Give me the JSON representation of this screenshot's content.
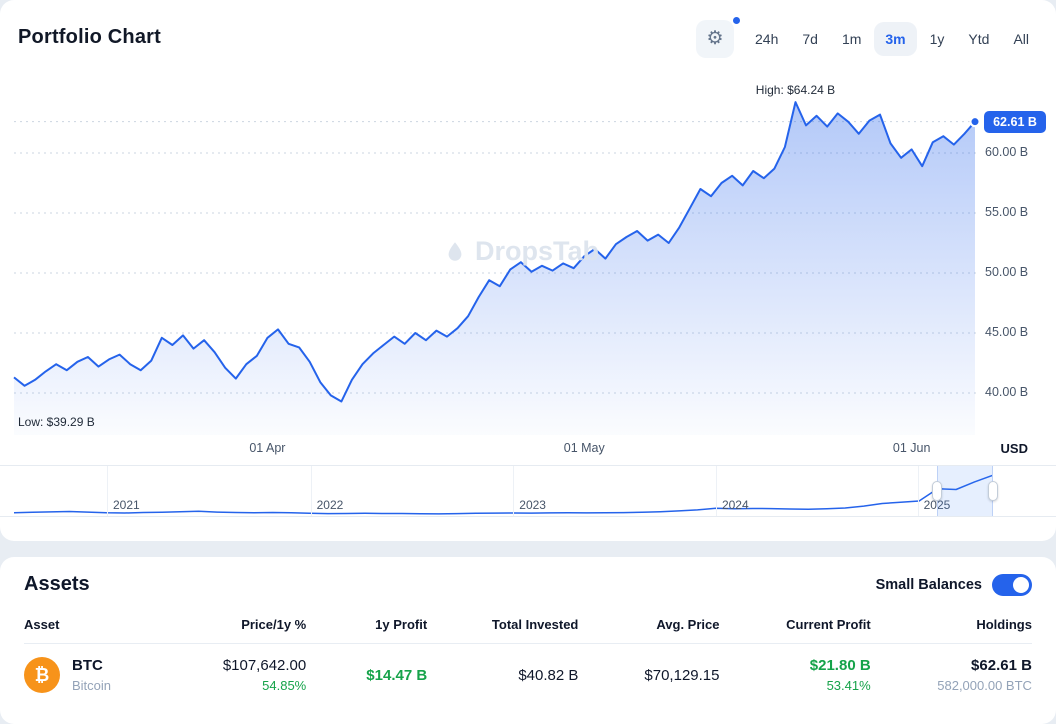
{
  "colors": {
    "accent": "#2563eb",
    "positive": "#16a34a",
    "bitcoin": "#f7931a"
  },
  "header": {
    "title": "Portfolio Chart",
    "ranges": [
      "24h",
      "7d",
      "1m",
      "3m",
      "1y",
      "Ytd",
      "All"
    ],
    "active_range": "3m"
  },
  "chart": {
    "watermark": "DropsTab",
    "high_label": "High: $64.24 B",
    "low_label": "Low: $39.29 B",
    "current_badge": "62.61 B",
    "currency": "USD",
    "y_ticks": [
      "60.00 B",
      "55.00 B",
      "50.00 B",
      "45.00 B",
      "40.00 B"
    ]
  },
  "chart_data": {
    "type": "area",
    "title": "Portfolio Chart",
    "unit": "USD billions",
    "range": "3m",
    "high": 64.24,
    "low": 39.29,
    "current": 62.61,
    "ylim": [
      37.5,
      66
    ],
    "y_gridlines": [
      60,
      55,
      50,
      45,
      40
    ],
    "x_ticks": [
      {
        "label": "01 Apr",
        "t": 0.2637
      },
      {
        "label": "01 May",
        "t": 0.5934
      },
      {
        "label": "01 Jun",
        "t": 0.9341
      }
    ],
    "values": [
      41.3,
      40.6,
      41.1,
      41.8,
      42.4,
      41.9,
      42.6,
      43.0,
      42.2,
      42.8,
      43.2,
      42.4,
      41.9,
      42.7,
      44.6,
      44.0,
      44.8,
      43.7,
      44.4,
      43.4,
      42.1,
      41.2,
      42.4,
      43.1,
      44.6,
      45.3,
      44.1,
      43.8,
      42.6,
      40.9,
      39.8,
      39.29,
      41.1,
      42.4,
      43.3,
      44.0,
      44.7,
      44.1,
      45.0,
      44.4,
      45.2,
      44.7,
      45.4,
      46.4,
      48.0,
      49.4,
      48.9,
      50.3,
      50.9,
      50.1,
      50.6,
      50.2,
      50.8,
      50.4,
      51.4,
      52.0,
      51.2,
      52.4,
      53.0,
      53.5,
      52.7,
      53.2,
      52.5,
      53.8,
      55.4,
      57.0,
      56.4,
      57.5,
      58.1,
      57.3,
      58.5,
      57.9,
      58.7,
      60.5,
      64.24,
      62.3,
      63.1,
      62.2,
      63.3,
      62.6,
      61.6,
      62.7,
      63.2,
      60.8,
      59.6,
      60.3,
      58.9,
      60.9,
      61.4,
      60.7,
      61.6,
      62.61
    ]
  },
  "navigator": {
    "years": [
      {
        "label": "2021",
        "t": 0.095
      },
      {
        "label": "2022",
        "t": 0.303
      },
      {
        "label": "2023",
        "t": 0.51
      },
      {
        "label": "2024",
        "t": 0.717
      },
      {
        "label": "2025",
        "t": 0.923
      }
    ],
    "selection": [
      0.943,
      1.0
    ],
    "values": [
      3.5,
      4.2,
      4.8,
      5.5,
      4.6,
      3.4,
      3.2,
      4.0,
      4.2,
      5.0,
      5.8,
      4.6,
      4.0,
      3.6,
      3.9,
      3.4,
      2.8,
      2.2,
      2.4,
      2.6,
      2.4,
      2.3,
      1.9,
      1.8,
      2.2,
      2.6,
      3.0,
      3.2,
      3.0,
      3.3,
      3.5,
      3.3,
      3.4,
      3.8,
      4.4,
      5.2,
      6.5,
      8.0,
      10.5,
      9.8,
      10.2,
      10.0,
      9.5,
      9.0,
      9.8,
      11.0,
      14.0,
      18.0,
      20.0,
      22.0,
      41.3,
      40.0,
      52.0,
      62.6
    ]
  },
  "assets": {
    "title": "Assets",
    "toggle_label": "Small Balances",
    "toggle_on": true,
    "columns": [
      "Asset",
      "Price/1y %",
      "1y Profit",
      "Total Invested",
      "Avg. Price",
      "Current Profit",
      "Holdings"
    ],
    "rows": [
      {
        "symbol": "BTC",
        "name": "Bitcoin",
        "icon": "₿",
        "price": "$107,642.00",
        "change_1y": "54.85%",
        "profit_1y": "$14.47 B",
        "total_invested": "$40.82 B",
        "avg_price": "$70,129.15",
        "current_profit": "$21.80 B",
        "current_profit_pct": "53.41%",
        "holdings_value": "$62.61 B",
        "holdings_amount": "582,000.00 BTC"
      }
    ]
  }
}
